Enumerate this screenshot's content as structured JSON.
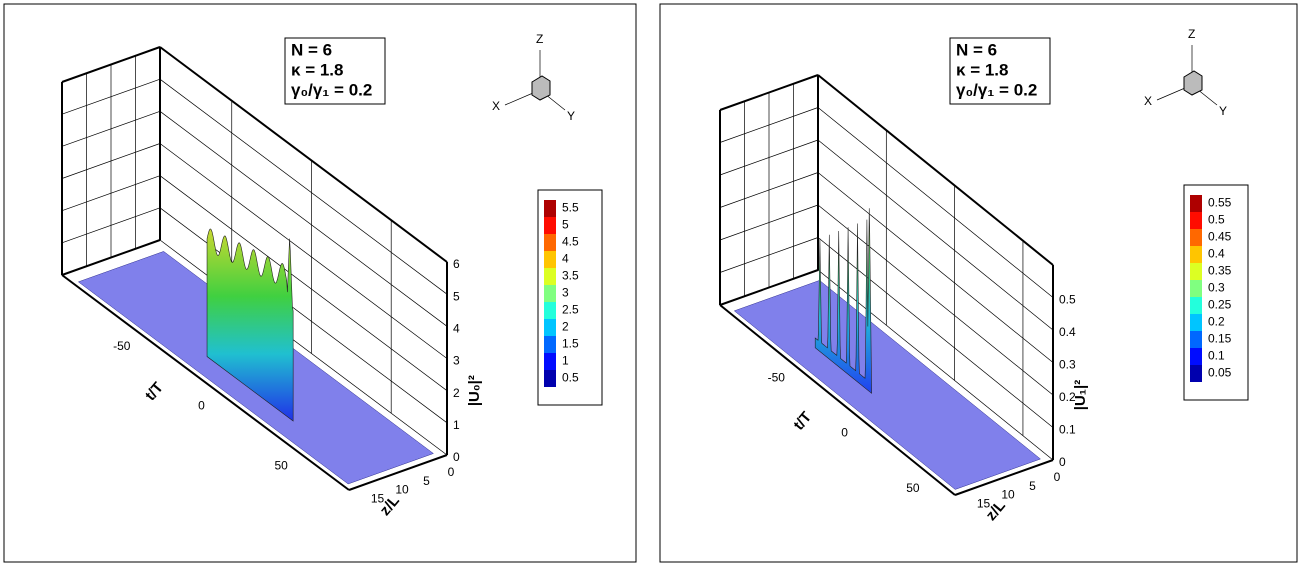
{
  "chart_data": [
    {
      "type": "surface3d",
      "annotation": [
        "N = 6",
        "κ = 1.8",
        "γ₀/γ₁ = 0.2"
      ],
      "x_label": "t/T",
      "y_label": "z/L",
      "z_label": "|U₀|²",
      "xlim": [
        -95,
        85
      ],
      "xticks": [
        -50,
        0,
        50
      ],
      "ylim": [
        0,
        20
      ],
      "yticks": [
        0,
        5,
        10,
        15
      ],
      "zlim": [
        0,
        6
      ],
      "zticks": [
        0,
        1,
        2,
        3,
        4,
        5,
        6
      ],
      "colorbar": [
        0.5,
        1,
        1.5,
        2,
        2.5,
        3,
        3.5,
        4,
        4.5,
        5,
        5.5
      ],
      "triad": [
        "X",
        "Y",
        "Z"
      ]
    },
    {
      "type": "surface3d",
      "annotation": [
        "N = 6",
        "κ = 1.8",
        "γ₀/γ₁ = 0.2"
      ],
      "x_label": "t/T",
      "y_label": "z/L",
      "z_label": "|U₁|²",
      "xlim": [
        -100,
        72
      ],
      "xticks": [
        -50,
        0,
        50
      ],
      "ylim": [
        0,
        20
      ],
      "yticks": [
        0,
        5,
        10,
        15
      ],
      "zlim": [
        0,
        0.6
      ],
      "zticks": [
        0,
        0.1,
        0.2,
        0.3,
        0.4,
        0.5
      ],
      "colorbar": [
        0.05,
        0.1,
        0.15,
        0.2,
        0.25,
        0.3,
        0.35,
        0.4,
        0.45,
        0.5,
        0.55
      ],
      "triad": [
        "X",
        "Y",
        "Z"
      ]
    }
  ]
}
